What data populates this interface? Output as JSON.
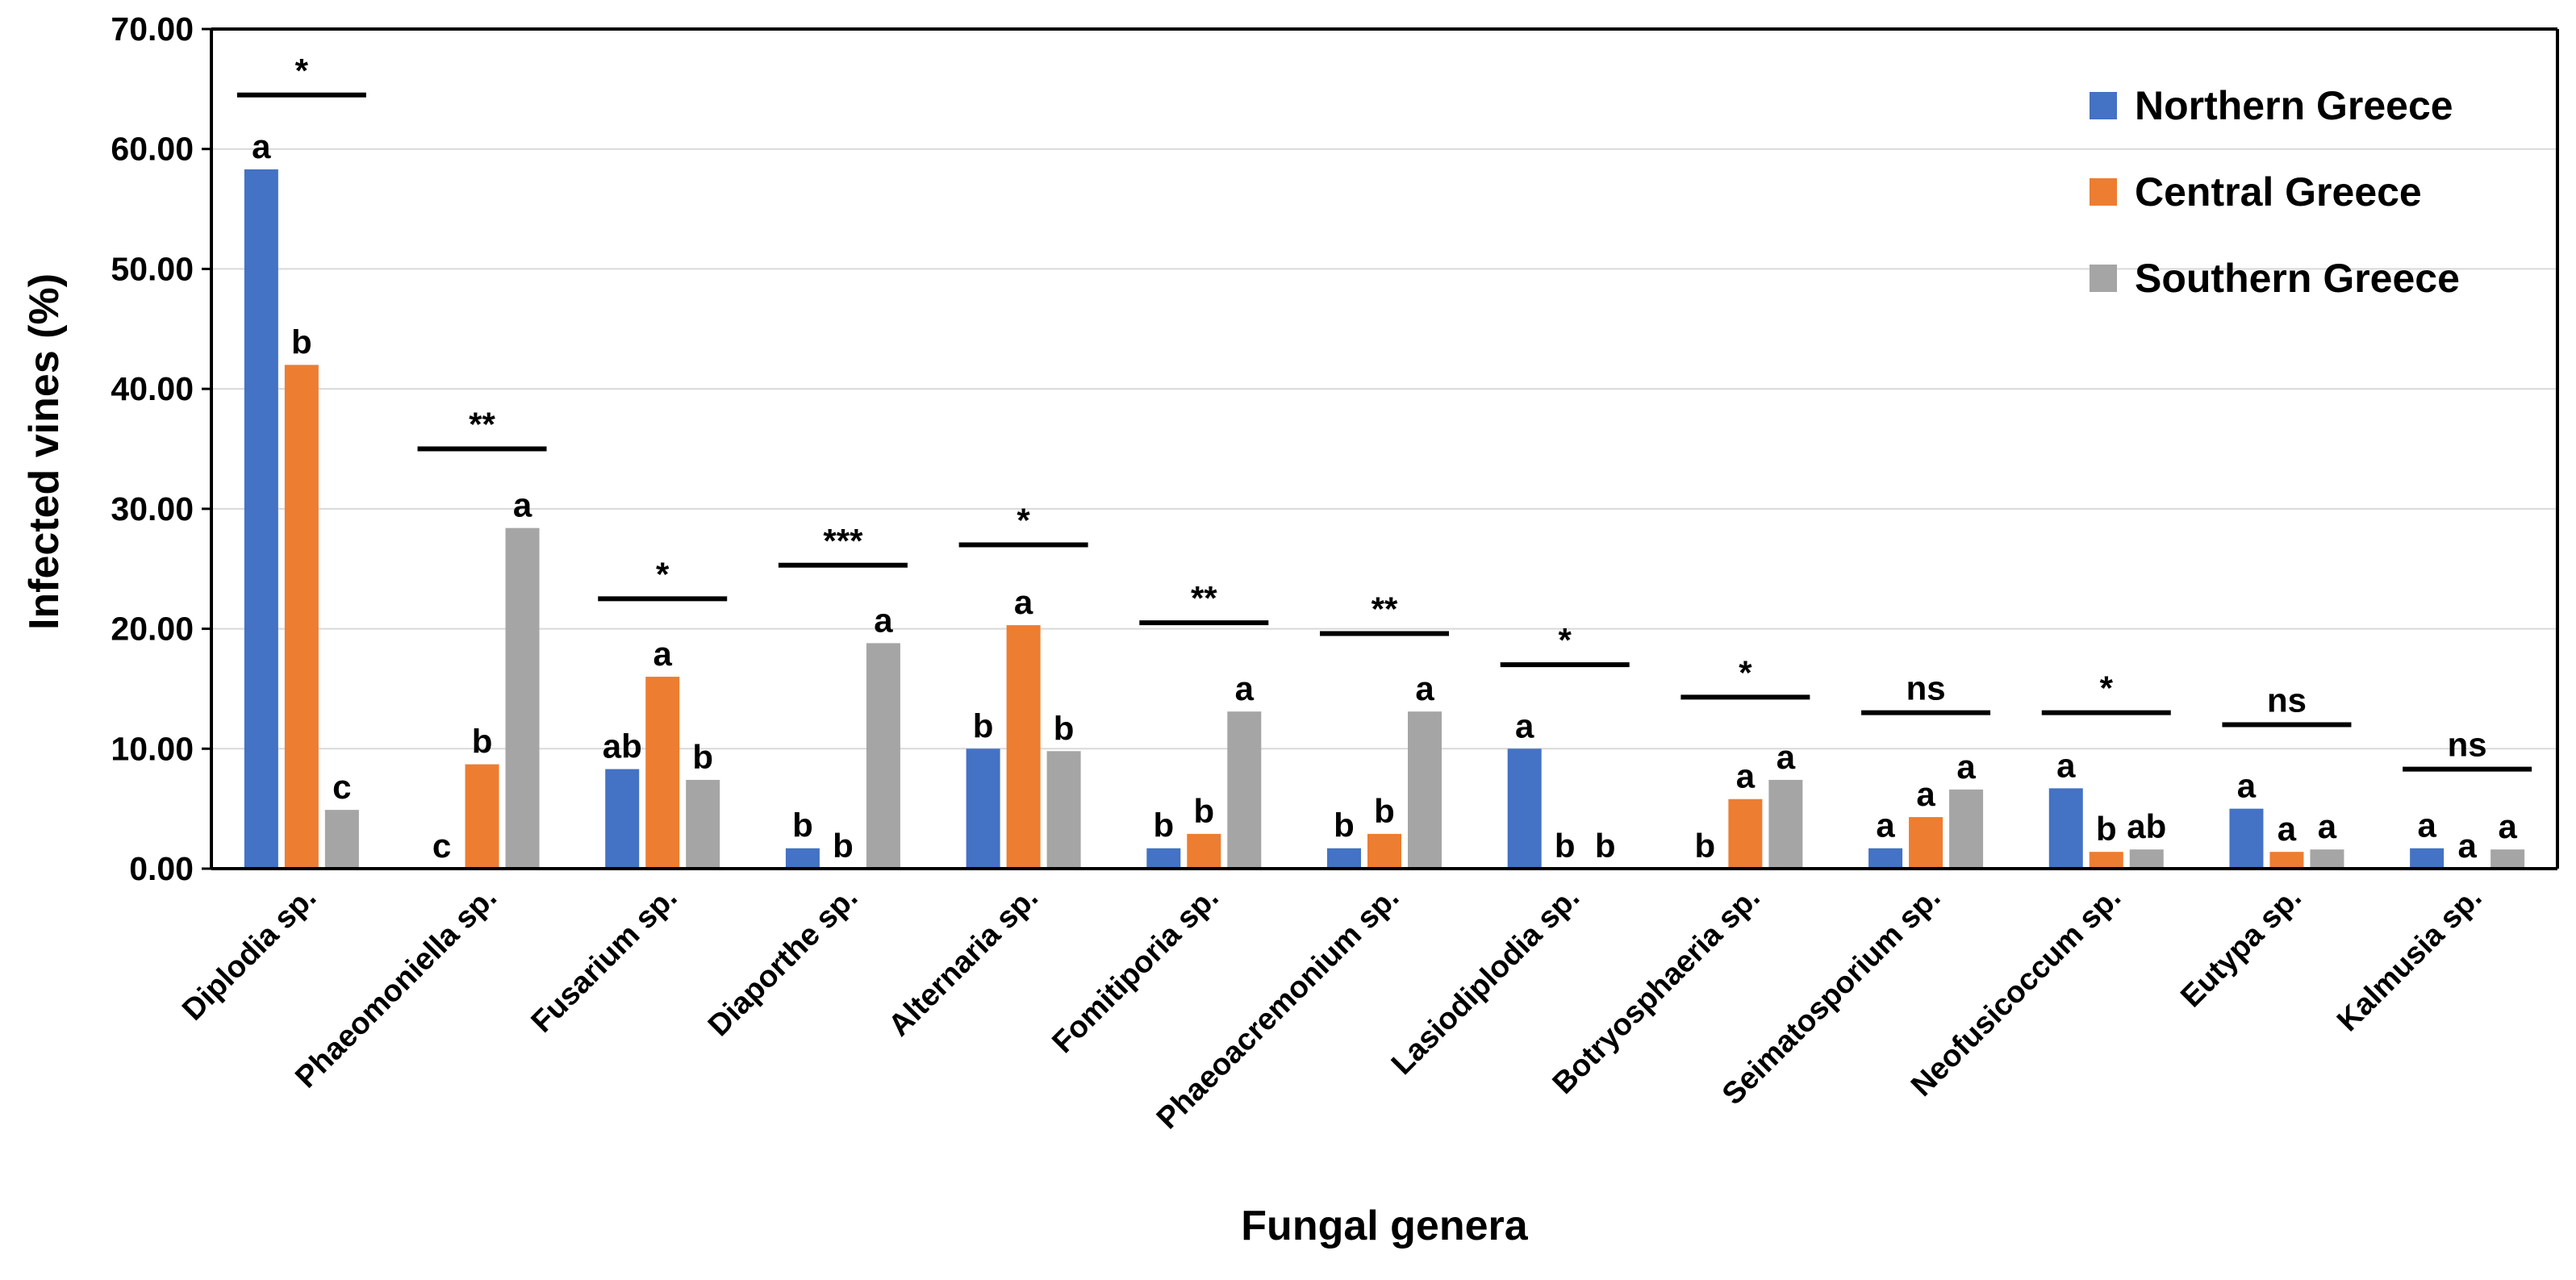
{
  "chart_data": {
    "type": "bar",
    "xlabel": "Fungal genera",
    "ylabel": "Infected vines (%)",
    "ylim": [
      0,
      70
    ],
    "ytick_step": 10,
    "ytick_labels": [
      "0.00",
      "10.00",
      "20.00",
      "30.00",
      "40.00",
      "50.00",
      "60.00",
      "70.00"
    ],
    "grid": true,
    "legend_position": "top-right",
    "categories": [
      "Diplodia sp.",
      "Phaeomoniella sp.",
      "Fusarium sp.",
      "Diaporthe sp.",
      "Alternaria sp.",
      "Fomitiporia sp.",
      "Phaeoacremonium sp.",
      "Lasiodiplodia sp.",
      "Botryosphaeria sp.",
      "Seimatosporium sp.",
      "Neofusicoccum sp.",
      "Eutypa sp.",
      "Kalmusia sp."
    ],
    "series": [
      {
        "name": "Northern Greece",
        "color": "#4472C4",
        "values": [
          58.3,
          0,
          8.3,
          1.7,
          10.0,
          1.7,
          1.7,
          10.0,
          0,
          1.7,
          6.7,
          5.0,
          1.7
        ],
        "letters": [
          "a",
          "c",
          "ab",
          "b",
          "b",
          "b",
          "b",
          "a",
          "b",
          "a",
          "a",
          "a",
          "a"
        ]
      },
      {
        "name": "Central Greece",
        "color": "#ED7D31",
        "values": [
          42.0,
          8.7,
          16.0,
          0,
          20.3,
          2.9,
          2.9,
          0,
          5.8,
          4.3,
          1.4,
          1.4,
          0
        ],
        "letters": [
          "b",
          "b",
          "a",
          "b",
          "a",
          "b",
          "b",
          "b",
          "a",
          "a",
          "b",
          "a",
          "a"
        ]
      },
      {
        "name": "Southern Greece",
        "color": "#A5A5A5",
        "values": [
          4.9,
          28.4,
          7.4,
          18.8,
          9.8,
          13.1,
          13.1,
          0,
          7.4,
          6.6,
          1.6,
          1.6,
          1.6
        ],
        "letters": [
          "c",
          "a",
          "b",
          "a",
          "b",
          "a",
          "a",
          "b",
          "a",
          "a",
          "ab",
          "a",
          "a"
        ]
      }
    ],
    "significance": [
      {
        "label": "*",
        "level": 64.5
      },
      {
        "label": "**",
        "level": 35.0
      },
      {
        "label": "*",
        "level": 22.5
      },
      {
        "label": "***",
        "level": 25.3
      },
      {
        "label": "*",
        "level": 27.0
      },
      {
        "label": "**",
        "level": 20.5
      },
      {
        "label": "**",
        "level": 19.6
      },
      {
        "label": "*",
        "level": 17.0
      },
      {
        "label": "*",
        "level": 14.3
      },
      {
        "label": "ns",
        "level": 13.0
      },
      {
        "label": "*",
        "level": 13.0
      },
      {
        "label": "ns",
        "level": 12.0
      },
      {
        "label": "ns",
        "level": 8.3
      }
    ]
  }
}
